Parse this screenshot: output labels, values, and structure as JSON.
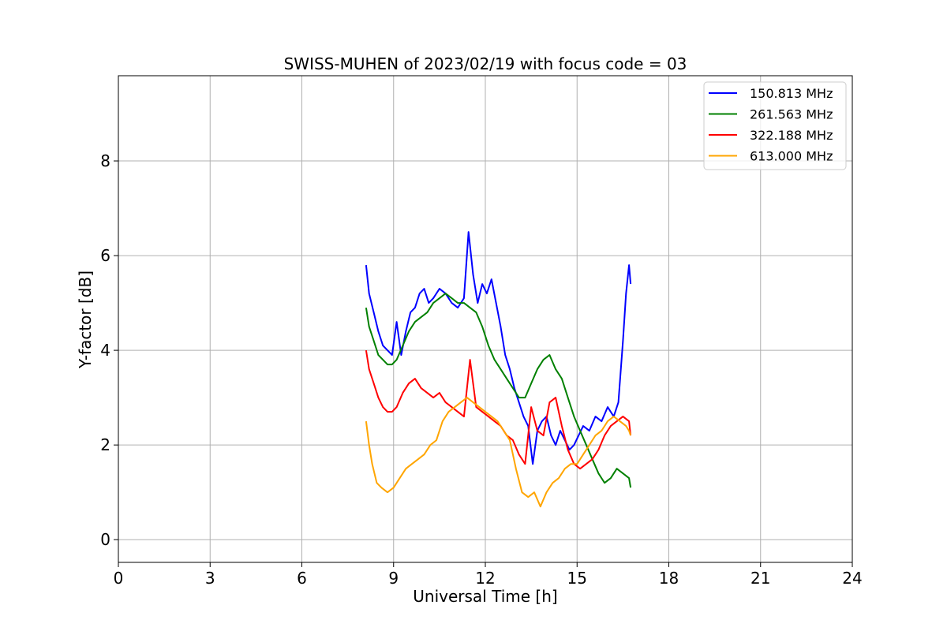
{
  "chart_data": {
    "type": "line",
    "title": "SWISS-MUHEN of 2023/02/19 with focus code = 03",
    "xlabel": "Universal Time [h]",
    "ylabel": "Y-factor [dB]",
    "xlim": [
      0,
      24
    ],
    "ylim": [
      -0.48,
      9.8
    ],
    "xticks": [
      0,
      3,
      6,
      9,
      12,
      15,
      18,
      21,
      24
    ],
    "yticks": [
      0,
      2,
      4,
      6,
      8
    ],
    "grid": true,
    "legend_position": "top-right",
    "series": [
      {
        "name": "150.813 MHz",
        "color": "#0000ff",
        "x": [
          8.1,
          8.2,
          8.35,
          8.5,
          8.65,
          8.8,
          8.95,
          9.1,
          9.25,
          9.4,
          9.55,
          9.7,
          9.85,
          10.0,
          10.15,
          10.3,
          10.5,
          10.7,
          10.9,
          11.1,
          11.3,
          11.45,
          11.6,
          11.75,
          11.9,
          12.05,
          12.2,
          12.35,
          12.5,
          12.65,
          12.8,
          12.95,
          13.1,
          13.25,
          13.4,
          13.55,
          13.7,
          13.85,
          14.0,
          14.15,
          14.3,
          14.45,
          14.6,
          14.75,
          14.9,
          15.05,
          15.2,
          15.4,
          15.6,
          15.8,
          16.0,
          16.2,
          16.35,
          16.5,
          16.6,
          16.7,
          16.75
        ],
        "y": [
          5.8,
          5.2,
          4.8,
          4.4,
          4.1,
          4.0,
          3.9,
          4.6,
          3.9,
          4.4,
          4.8,
          4.9,
          5.2,
          5.3,
          5.0,
          5.1,
          5.3,
          5.2,
          5.0,
          4.9,
          5.1,
          6.5,
          5.6,
          5.0,
          5.4,
          5.2,
          5.5,
          5.0,
          4.5,
          3.9,
          3.6,
          3.2,
          2.9,
          2.6,
          2.4,
          1.6,
          2.3,
          2.5,
          2.6,
          2.2,
          2.0,
          2.3,
          2.1,
          1.9,
          2.0,
          2.2,
          2.4,
          2.3,
          2.6,
          2.5,
          2.8,
          2.6,
          2.9,
          4.2,
          5.2,
          5.8,
          5.4
        ]
      },
      {
        "name": "261.563 MHz",
        "color": "#008000",
        "x": [
          8.1,
          8.2,
          8.35,
          8.5,
          8.65,
          8.8,
          8.95,
          9.1,
          9.3,
          9.5,
          9.7,
          9.9,
          10.1,
          10.3,
          10.5,
          10.7,
          10.9,
          11.1,
          11.3,
          11.5,
          11.7,
          11.9,
          12.1,
          12.3,
          12.5,
          12.7,
          12.9,
          13.1,
          13.3,
          13.5,
          13.7,
          13.9,
          14.1,
          14.3,
          14.5,
          14.7,
          14.9,
          15.1,
          15.3,
          15.5,
          15.7,
          15.9,
          16.1,
          16.3,
          16.5,
          16.7,
          16.75
        ],
        "y": [
          4.9,
          4.5,
          4.2,
          3.9,
          3.8,
          3.7,
          3.7,
          3.8,
          4.1,
          4.4,
          4.6,
          4.7,
          4.8,
          5.0,
          5.1,
          5.2,
          5.1,
          5.0,
          5.0,
          4.9,
          4.8,
          4.5,
          4.1,
          3.8,
          3.6,
          3.4,
          3.2,
          3.0,
          3.0,
          3.3,
          3.6,
          3.8,
          3.9,
          3.6,
          3.4,
          3.0,
          2.6,
          2.3,
          2.0,
          1.7,
          1.4,
          1.2,
          1.3,
          1.5,
          1.4,
          1.3,
          1.1
        ]
      },
      {
        "name": "322.188 MHz",
        "color": "#ff0000",
        "x": [
          8.1,
          8.2,
          8.35,
          8.5,
          8.65,
          8.8,
          8.95,
          9.1,
          9.3,
          9.5,
          9.7,
          9.9,
          10.1,
          10.3,
          10.5,
          10.7,
          10.9,
          11.1,
          11.3,
          11.5,
          11.7,
          11.9,
          12.1,
          12.3,
          12.5,
          12.7,
          12.9,
          13.1,
          13.3,
          13.5,
          13.7,
          13.9,
          14.1,
          14.3,
          14.5,
          14.7,
          14.9,
          15.1,
          15.3,
          15.5,
          15.7,
          15.9,
          16.1,
          16.3,
          16.5,
          16.7,
          16.75
        ],
        "y": [
          4.0,
          3.6,
          3.3,
          3.0,
          2.8,
          2.7,
          2.7,
          2.8,
          3.1,
          3.3,
          3.4,
          3.2,
          3.1,
          3.0,
          3.1,
          2.9,
          2.8,
          2.7,
          2.6,
          3.8,
          2.8,
          2.7,
          2.6,
          2.5,
          2.4,
          2.2,
          2.1,
          1.8,
          1.6,
          2.8,
          2.3,
          2.2,
          2.9,
          3.0,
          2.4,
          1.9,
          1.6,
          1.5,
          1.6,
          1.7,
          1.9,
          2.2,
          2.4,
          2.5,
          2.6,
          2.5,
          2.2
        ]
      },
      {
        "name": "613.000 MHz",
        "color": "#ffa500",
        "x": [
          8.1,
          8.2,
          8.3,
          8.45,
          8.6,
          8.8,
          9.0,
          9.2,
          9.4,
          9.6,
          9.8,
          10.0,
          10.2,
          10.4,
          10.6,
          10.8,
          11.0,
          11.2,
          11.4,
          11.6,
          11.8,
          12.0,
          12.2,
          12.4,
          12.6,
          12.8,
          13.0,
          13.2,
          13.4,
          13.6,
          13.8,
          14.0,
          14.2,
          14.4,
          14.6,
          14.8,
          15.0,
          15.2,
          15.4,
          15.6,
          15.8,
          16.0,
          16.2,
          16.4,
          16.6,
          16.7,
          16.75
        ],
        "y": [
          2.5,
          2.0,
          1.6,
          1.2,
          1.1,
          1.0,
          1.1,
          1.3,
          1.5,
          1.6,
          1.7,
          1.8,
          2.0,
          2.1,
          2.5,
          2.7,
          2.8,
          2.9,
          3.0,
          2.9,
          2.8,
          2.7,
          2.6,
          2.5,
          2.3,
          2.1,
          1.5,
          1.0,
          0.9,
          1.0,
          0.7,
          1.0,
          1.2,
          1.3,
          1.5,
          1.6,
          1.6,
          1.8,
          2.0,
          2.2,
          2.3,
          2.5,
          2.6,
          2.5,
          2.4,
          2.3,
          2.2
        ]
      }
    ]
  }
}
